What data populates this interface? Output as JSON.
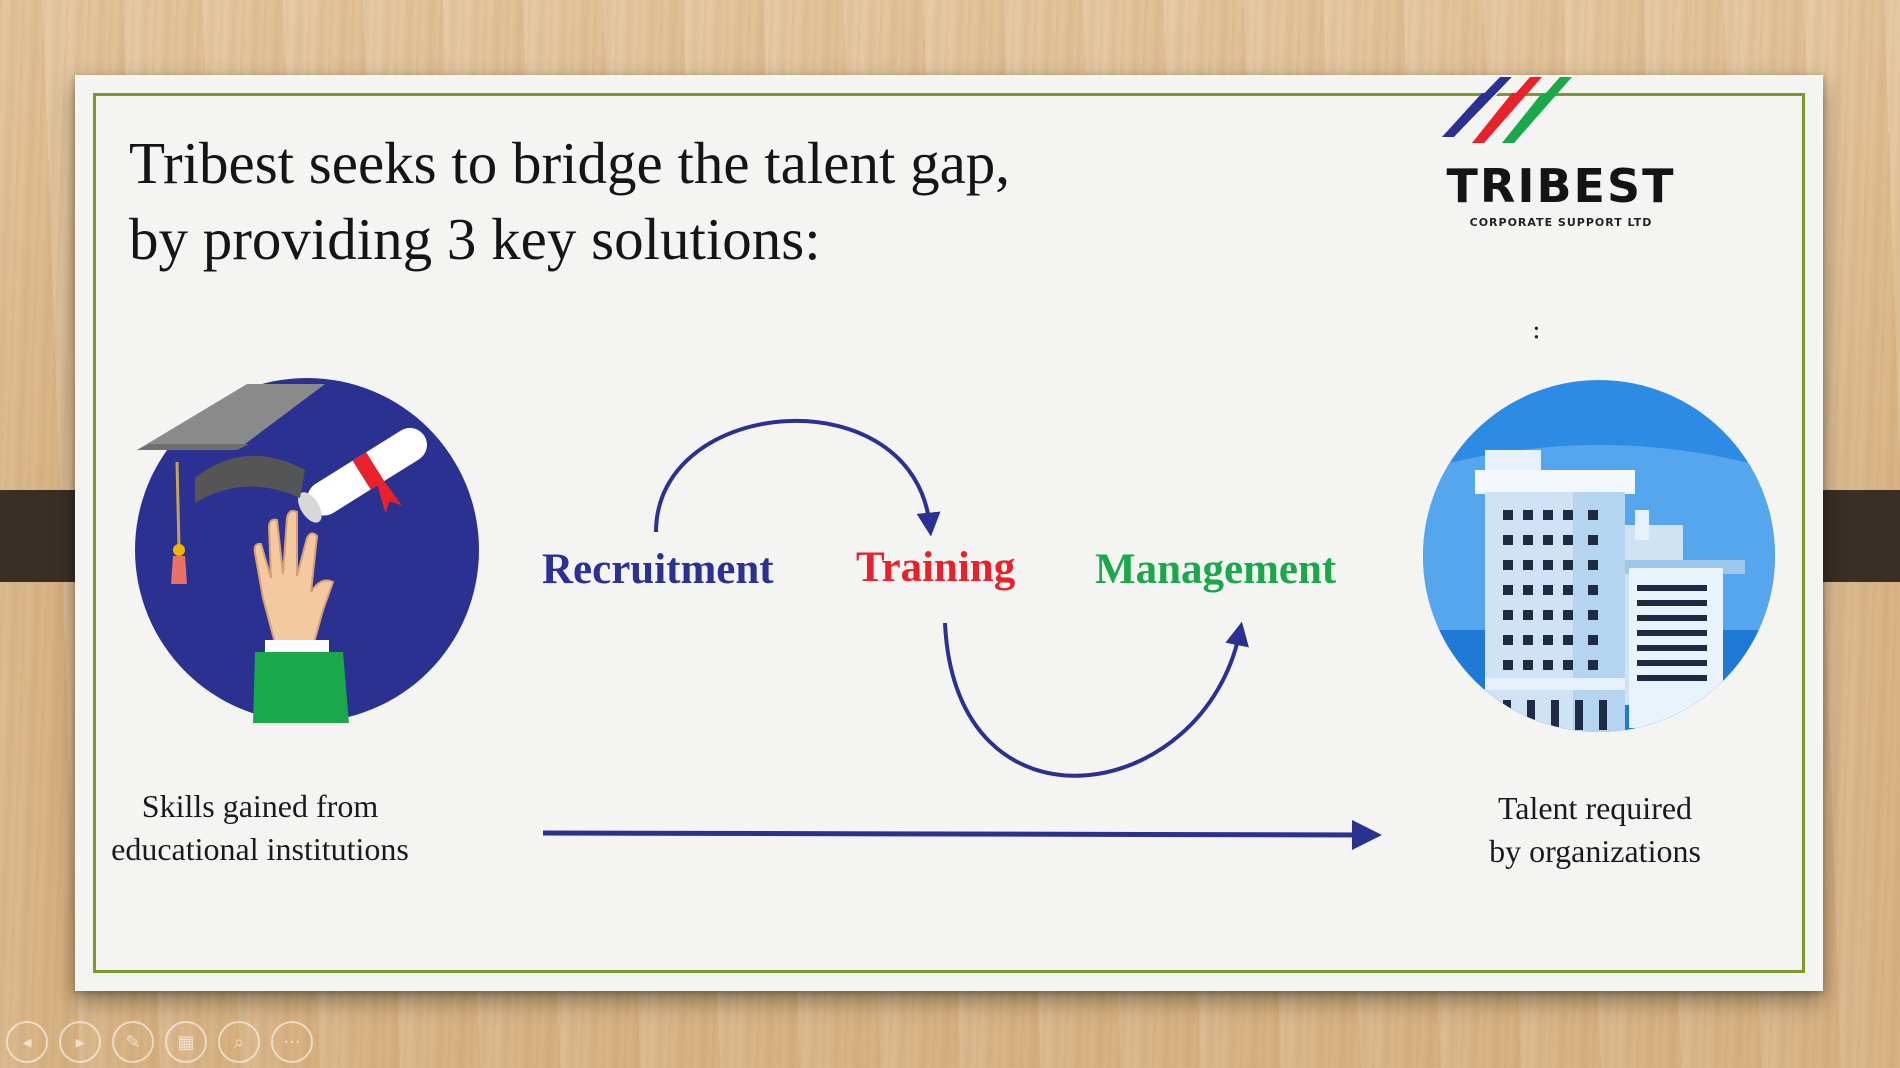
{
  "slide": {
    "headline": {
      "line1": "Tribest seeks to bridge the talent gap,",
      "line2": "by providing 3 key solutions:"
    },
    "logo": {
      "name": "TRIBEST",
      "subtitle": "CORPORATE SUPPORT LTD",
      "stripe_colors": [
        "#2b3190",
        "#e8212b",
        "#1aa84a"
      ]
    },
    "stray_mark": ":",
    "solutions": [
      {
        "label": "Recruitment",
        "color": "#2b3190"
      },
      {
        "label": "Training",
        "color": "#e8212b"
      },
      {
        "label": "Management",
        "color": "#1aa84a"
      }
    ],
    "left_caption": {
      "line1": "Skills gained from",
      "line2": "educational institutions"
    },
    "right_caption": {
      "line1": "Talent required",
      "line2": "by organizations"
    },
    "arrow_color": "#2b3190"
  },
  "toolbar": {
    "buttons": [
      {
        "name": "previous-slide-button",
        "icon": "chevron-left-icon",
        "glyph": "◂"
      },
      {
        "name": "next-slide-button",
        "icon": "chevron-right-icon",
        "glyph": "▸"
      },
      {
        "name": "pen-tool-button",
        "icon": "pen-icon",
        "glyph": "✎"
      },
      {
        "name": "slide-sorter-button",
        "icon": "grid-icon",
        "glyph": "▦"
      },
      {
        "name": "zoom-button",
        "icon": "magnifier-icon",
        "glyph": "⌕"
      },
      {
        "name": "more-options-button",
        "icon": "ellipsis-icon",
        "glyph": "···"
      }
    ]
  }
}
